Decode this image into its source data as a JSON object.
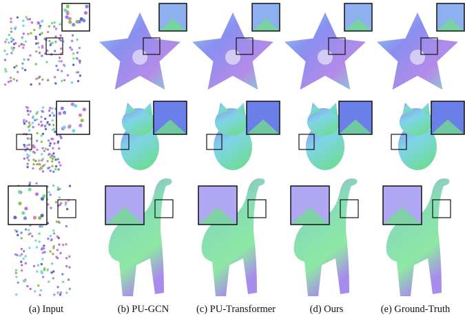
{
  "figure": {
    "columns": [
      {
        "id": "input",
        "caption": "(a) Input"
      },
      {
        "id": "pu-gcn",
        "caption": "(b) PU-GCN"
      },
      {
        "id": "pu-transformer",
        "caption": "(c) PU-Transformer"
      },
      {
        "id": "ours",
        "caption": "(d) Ours"
      },
      {
        "id": "ground-truth",
        "caption": "(e) Ground-Truth"
      }
    ],
    "rows": [
      {
        "id": "star"
      },
      {
        "id": "cat"
      },
      {
        "id": "elephant"
      }
    ],
    "colors": {
      "normal_blue": "#7f86ec",
      "normal_violet": "#b77fe8",
      "normal_cyan": "#79d6e6",
      "normal_green": "#6fe08a",
      "zoom_border": "#111111"
    }
  }
}
